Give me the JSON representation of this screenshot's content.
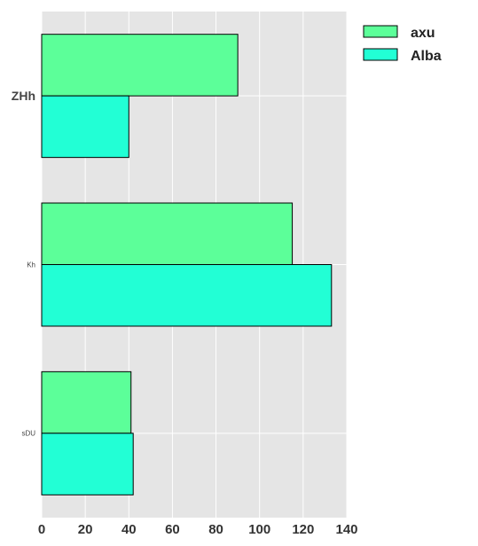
{
  "chart_data": {
    "type": "bar",
    "orientation": "horizontal",
    "title": "",
    "xlabel": "",
    "ylabel": "",
    "categories": [
      "ZHh",
      "Kh",
      "sDU"
    ],
    "series": [
      {
        "name": "axu",
        "values": [
          90,
          115,
          41
        ],
        "color": "#5cff99"
      },
      {
        "name": "Alba",
        "values": [
          40,
          133,
          42
        ],
        "color": "#22ffd5"
      }
    ],
    "xlim": [
      0,
      140
    ],
    "xticks": [
      "0",
      "20",
      "40",
      "60",
      "80",
      "100",
      "120",
      "140"
    ],
    "grid": true,
    "legend_position": "top-right",
    "plot_background": "#e5e5e5",
    "grid_color": "#ffffff"
  }
}
